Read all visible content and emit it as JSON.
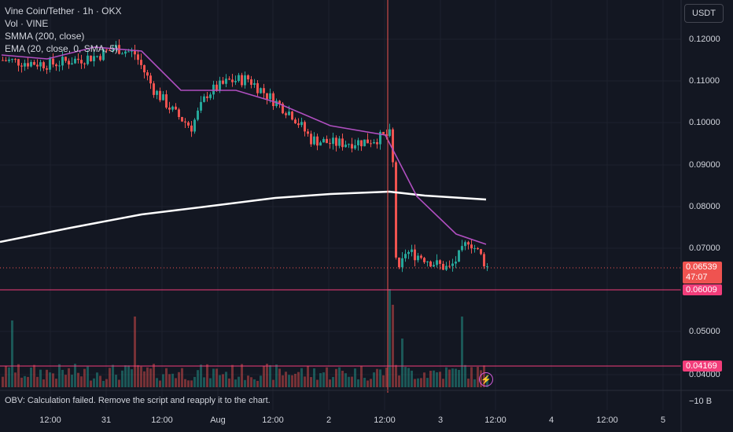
{
  "legend": {
    "symbol": "Vine Coin/Tether · 1h · OKX",
    "volume": "Vol · VINE",
    "smma": "SMMA (200, close)",
    "ema": "EMA (20, close, 0, SMA, 5)"
  },
  "currency": "USDT",
  "price_ticks": [
    "0.12000",
    "0.11000",
    "0.10000",
    "0.09000",
    "0.08000",
    "0.07000",
    "0.05000",
    "0.04000"
  ],
  "current_price": "0.06539",
  "countdown": "47:07",
  "line_price_1": "0.06009",
  "line_price_2": "0.04169",
  "obv_tick": "−10 B",
  "obv_message": "OBV: Calculation failed. Remove the script and reapply it to the chart.",
  "time_labels": [
    "12:00",
    "31",
    "12:00",
    "Aug",
    "12:00",
    "2",
    "12:00",
    "3",
    "12:00",
    "4",
    "12:00",
    "5"
  ],
  "colors": {
    "up": "#26a69a",
    "down": "#ef5350",
    "ema": "#b04fc0",
    "smma": "#ffffff",
    "line": "#f23d7a",
    "bg": "#131722"
  },
  "icons": {
    "alert": "lightning-icon"
  },
  "chart_data": {
    "type": "candlestick",
    "symbol": "Vine Coin/Tether",
    "ylim": [
      0.04,
      0.125
    ],
    "key_levels": [
      0.06009,
      0.04169
    ],
    "last_price": 0.06539,
    "ema_series_close": [
      0.118,
      0.117,
      0.116,
      0.11,
      0.104,
      0.1,
      0.098,
      0.0965,
      0.089,
      0.078,
      0.072,
      0.0705
    ],
    "smma_series_close": [
      0.072,
      0.0745,
      0.0775,
      0.0795,
      0.081,
      0.0822,
      0.083,
      0.0825,
      0.0818
    ]
  }
}
